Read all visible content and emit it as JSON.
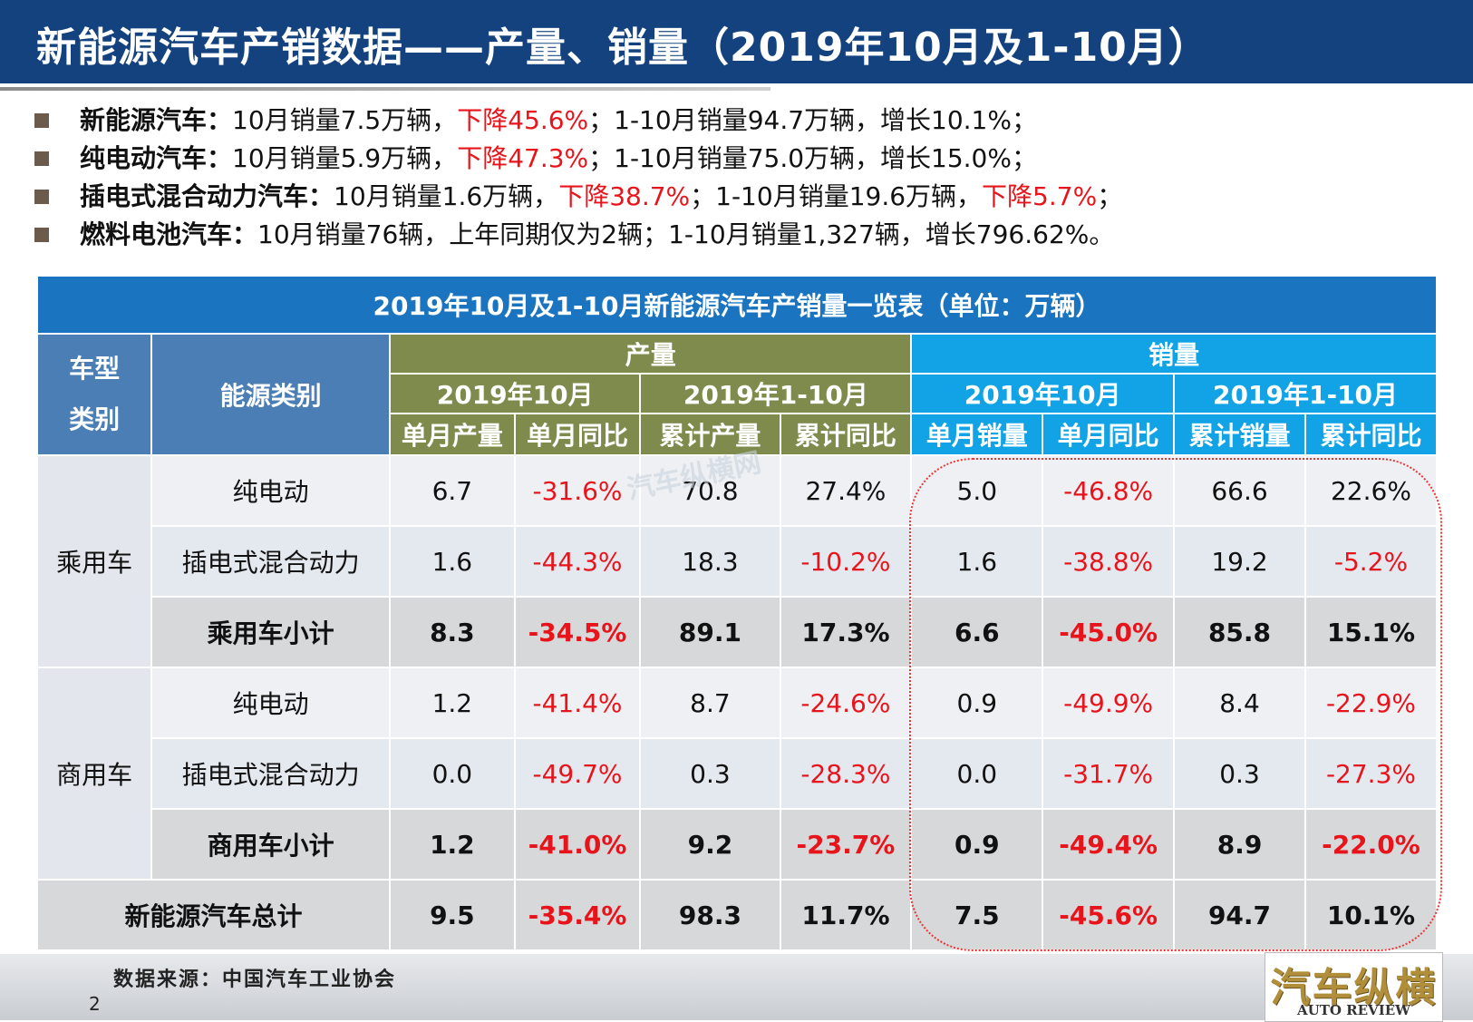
{
  "header": {
    "title": "新能源汽车产销数据——产量、销量（2019年10月及1-10月）"
  },
  "bullets": [
    {
      "head": "新能源汽车：",
      "parts": [
        {
          "text": "10月销量7.5万辆，",
          "red": false
        },
        {
          "text": "下降45.6%",
          "red": true
        },
        {
          "text": "；1-10月销量94.7万辆，增长10.1%；",
          "red": false
        }
      ]
    },
    {
      "head": "纯电动汽车：",
      "parts": [
        {
          "text": "10月销量5.9万辆，",
          "red": false
        },
        {
          "text": "下降47.3%",
          "red": true
        },
        {
          "text": "；1-10月销量75.0万辆，增长15.0%；",
          "red": false
        }
      ]
    },
    {
      "head": "插电式混合动力汽车：",
      "parts": [
        {
          "text": "10月销量1.6万辆，",
          "red": false
        },
        {
          "text": "下降38.7%",
          "red": true
        },
        {
          "text": "；1-10月销量19.6万辆，",
          "red": false
        },
        {
          "text": "下降5.7%",
          "red": true
        },
        {
          "text": "；",
          "red": false
        }
      ]
    },
    {
      "head": "燃料电池汽车：",
      "parts": [
        {
          "text": "10月销量76辆，上年同期仅为2辆；1-10月销量1,327辆，增长796.62%。",
          "red": false
        }
      ]
    }
  ],
  "table": {
    "caption": "2019年10月及1-10月新能源汽车产销量一览表（单位：万辆）",
    "col_vehicle": "车型类别",
    "col_vehicle_l1": "车型",
    "col_vehicle_l2": "类别",
    "col_energy": "能源类别",
    "group_production": "产量",
    "group_sales": "销量",
    "period_month": "2019年10月",
    "period_ytd": "2019年1-10月",
    "sub_headers": [
      "单月产量",
      "单月同比",
      "累计产量",
      "累计同比",
      "单月销量",
      "单月同比",
      "累计销量",
      "累计同比"
    ],
    "groups": [
      {
        "name": "乘用车",
        "rows": [
          {
            "energy": "纯电动",
            "values": [
              "6.7",
              "-31.6%",
              "70.8",
              "27.4%",
              "5.0",
              "-46.8%",
              "66.6",
              "22.6%"
            ],
            "subtotal": false
          },
          {
            "energy": "插电式混合动力",
            "values": [
              "1.6",
              "-44.3%",
              "18.3",
              "-10.2%",
              "1.6",
              "-38.8%",
              "19.2",
              "-5.2%"
            ],
            "subtotal": false
          },
          {
            "energy": "乘用车小计",
            "values": [
              "8.3",
              "-34.5%",
              "89.1",
              "17.3%",
              "6.6",
              "-45.0%",
              "85.8",
              "15.1%"
            ],
            "subtotal": true
          }
        ]
      },
      {
        "name": "商用车",
        "rows": [
          {
            "energy": "纯电动",
            "values": [
              "1.2",
              "-41.4%",
              "8.7",
              "-24.6%",
              "0.9",
              "-49.9%",
              "8.4",
              "-22.9%"
            ],
            "subtotal": false
          },
          {
            "energy": "插电式混合动力",
            "values": [
              "0.0",
              "-49.7%",
              "0.3",
              "-28.3%",
              "0.0",
              "-31.7%",
              "0.3",
              "-27.3%"
            ],
            "subtotal": false
          },
          {
            "energy": "商用车小计",
            "values": [
              "1.2",
              "-41.0%",
              "9.2",
              "-23.7%",
              "0.9",
              "-49.4%",
              "8.9",
              "-22.0%"
            ],
            "subtotal": true
          }
        ]
      }
    ],
    "total": {
      "label": "新能源汽车总计",
      "values": [
        "9.5",
        "-35.4%",
        "98.3",
        "11.7%",
        "7.5",
        "-45.6%",
        "94.7",
        "10.1%"
      ]
    }
  },
  "watermark": "汽车纵横网",
  "footer": {
    "source": "数据来源：中国汽车工业协会",
    "page_number": "2",
    "logo_cn": "汽车纵横",
    "logo_en": "AUTO REVIEW"
  },
  "colors": {
    "title_bg": "#13427f",
    "negative": "#e8141b",
    "caption_bg": "#1b74bf",
    "production_header": "#7f8a4d",
    "sales_header": "#11a3e6"
  }
}
